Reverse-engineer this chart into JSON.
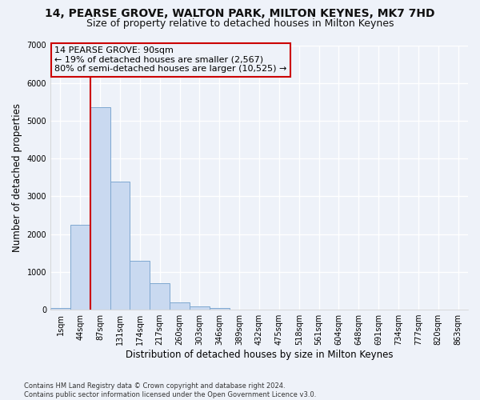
{
  "title1": "14, PEARSE GROVE, WALTON PARK, MILTON KEYNES, MK7 7HD",
  "title2": "Size of property relative to detached houses in Milton Keynes",
  "xlabel": "Distribution of detached houses by size in Milton Keynes",
  "ylabel": "Number of detached properties",
  "footnote": "Contains HM Land Registry data © Crown copyright and database right 2024.\nContains public sector information licensed under the Open Government Licence v3.0.",
  "annotation_title": "14 PEARSE GROVE: 90sqm",
  "annotation_line1": "← 19% of detached houses are smaller (2,567)",
  "annotation_line2": "80% of semi-detached houses are larger (10,525) →",
  "bar_color": "#c9d9f0",
  "bar_edge_color": "#7fa8d0",
  "vline_color": "#cc0000",
  "categories": [
    "1sqm",
    "44sqm",
    "87sqm",
    "131sqm",
    "174sqm",
    "217sqm",
    "260sqm",
    "303sqm",
    "346sqm",
    "389sqm",
    "432sqm",
    "475sqm",
    "518sqm",
    "561sqm",
    "604sqm",
    "648sqm",
    "691sqm",
    "734sqm",
    "777sqm",
    "820sqm",
    "863sqm"
  ],
  "values": [
    50,
    2250,
    5350,
    3400,
    1300,
    700,
    200,
    90,
    40,
    10,
    5,
    2,
    1,
    1,
    0,
    0,
    0,
    0,
    0,
    0,
    0
  ],
  "ylim": [
    0,
    7000
  ],
  "yticks": [
    0,
    1000,
    2000,
    3000,
    4000,
    5000,
    6000,
    7000
  ],
  "bg_color": "#eef2f9",
  "grid_color": "#ffffff",
  "title_fontsize": 10,
  "subtitle_fontsize": 9,
  "axis_label_fontsize": 8.5,
  "tick_fontsize": 7,
  "footnote_fontsize": 6,
  "annotation_fontsize": 8
}
